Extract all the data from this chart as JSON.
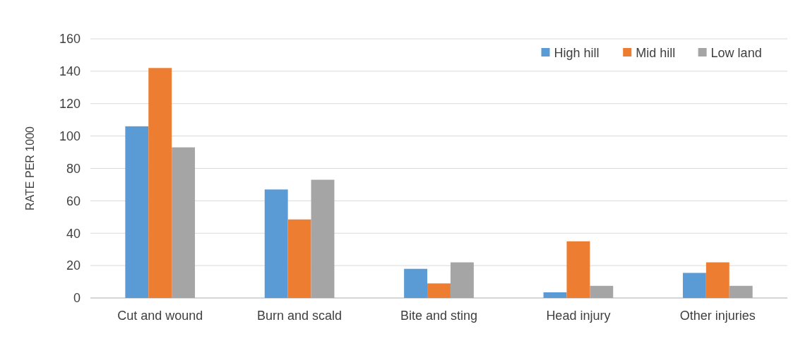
{
  "chart_data": {
    "type": "bar",
    "ylabel": "RATE PER 1000",
    "categories": [
      "Cut and wound",
      "Burn and scald",
      "Bite and sting",
      "Head injury",
      "Other injuries"
    ],
    "series": [
      {
        "name": "High hill",
        "color": "#5b9bd5",
        "values": [
          106,
          67,
          18,
          3.5,
          15.5
        ]
      },
      {
        "name": "Mid hill",
        "color": "#ed7d31",
        "values": [
          142,
          48.5,
          9,
          35,
          22
        ]
      },
      {
        "name": "Low land",
        "color": "#a5a5a5",
        "values": [
          93,
          73,
          22,
          7.5,
          7.5
        ]
      }
    ],
    "ylim": [
      0,
      160
    ],
    "yticks": [
      0,
      20,
      40,
      60,
      80,
      100,
      120,
      140,
      160
    ],
    "grid": "y",
    "legend": "top right"
  }
}
